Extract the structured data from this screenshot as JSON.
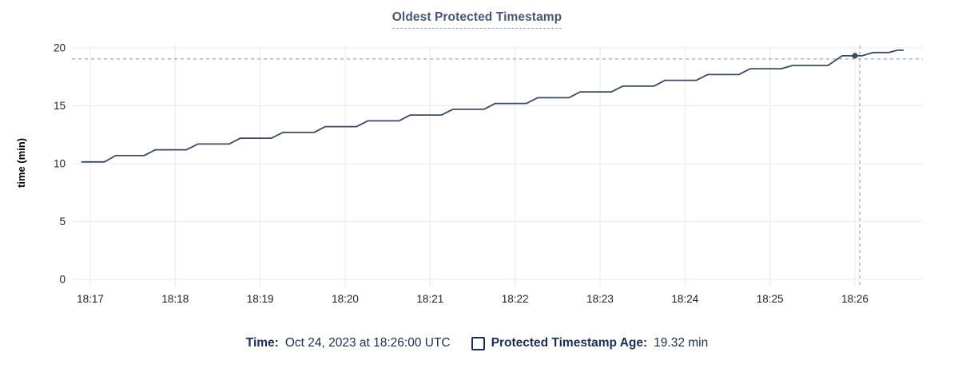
{
  "title": "Oldest Protected Timestamp",
  "colors": {
    "title": "#475872",
    "line": "#3c4a61",
    "crosshair": "#93a9bc",
    "grid": "#ededf0",
    "axis_text": "#222222",
    "legend_text": "#1a2e52"
  },
  "legend": {
    "time_label": "Time:",
    "time_value": "Oct 24, 2023 at 18:26:00 UTC",
    "series_label": "Protected Timestamp Age:",
    "series_value": "19.32 min",
    "series_checkbox_checked": false
  },
  "chart_data": {
    "type": "line",
    "title": "Oldest Protected Timestamp",
    "xlabel": "",
    "ylabel": "time (min)",
    "ylim": [
      0,
      20
    ],
    "y_ticks": [
      0,
      5,
      10,
      15,
      20
    ],
    "x_ticks": [
      "18:17",
      "18:18",
      "18:19",
      "18:20",
      "18:21",
      "18:22",
      "18:23",
      "18:24",
      "18:25",
      "18:26"
    ],
    "grid": true,
    "legend_position": "bottom",
    "line_style": "step-ramp",
    "series": [
      {
        "name": "Protected Timestamp Age",
        "unit": "min",
        "points": [
          [
            "18:16:54",
            10.15
          ],
          [
            "18:17:10",
            10.15
          ],
          [
            "18:17:18",
            10.7
          ],
          [
            "18:17:38",
            10.7
          ],
          [
            "18:17:46",
            11.2
          ],
          [
            "18:18:08",
            11.2
          ],
          [
            "18:18:16",
            11.7
          ],
          [
            "18:18:38",
            11.7
          ],
          [
            "18:18:46",
            12.2
          ],
          [
            "18:19:08",
            12.2
          ],
          [
            "18:19:16",
            12.7
          ],
          [
            "18:19:38",
            12.7
          ],
          [
            "18:19:46",
            13.2
          ],
          [
            "18:20:08",
            13.2
          ],
          [
            "18:20:16",
            13.7
          ],
          [
            "18:20:38",
            13.7
          ],
          [
            "18:20:46",
            14.2
          ],
          [
            "18:21:08",
            14.2
          ],
          [
            "18:21:16",
            14.7
          ],
          [
            "18:21:38",
            14.7
          ],
          [
            "18:21:46",
            15.2
          ],
          [
            "18:22:08",
            15.2
          ],
          [
            "18:22:16",
            15.7
          ],
          [
            "18:22:38",
            15.7
          ],
          [
            "18:22:46",
            16.2
          ],
          [
            "18:23:08",
            16.2
          ],
          [
            "18:23:16",
            16.7
          ],
          [
            "18:23:38",
            16.7
          ],
          [
            "18:23:46",
            17.2
          ],
          [
            "18:24:08",
            17.2
          ],
          [
            "18:24:16",
            17.7
          ],
          [
            "18:24:38",
            17.7
          ],
          [
            "18:24:46",
            18.2
          ],
          [
            "18:25:08",
            18.2
          ],
          [
            "18:25:16",
            18.48
          ],
          [
            "18:25:41",
            18.48
          ],
          [
            "18:25:51",
            19.32
          ],
          [
            "18:26:05",
            19.32
          ],
          [
            "18:26:13",
            19.6
          ],
          [
            "18:26:24",
            19.6
          ],
          [
            "18:26:30",
            19.8
          ],
          [
            "18:26:34",
            19.8
          ]
        ]
      }
    ],
    "hover_point": {
      "time": "18:26:00",
      "value": 19.32,
      "display_time": "Oct 24, 2023 at 18:26:00 UTC",
      "display_value": "19.32 min"
    }
  }
}
